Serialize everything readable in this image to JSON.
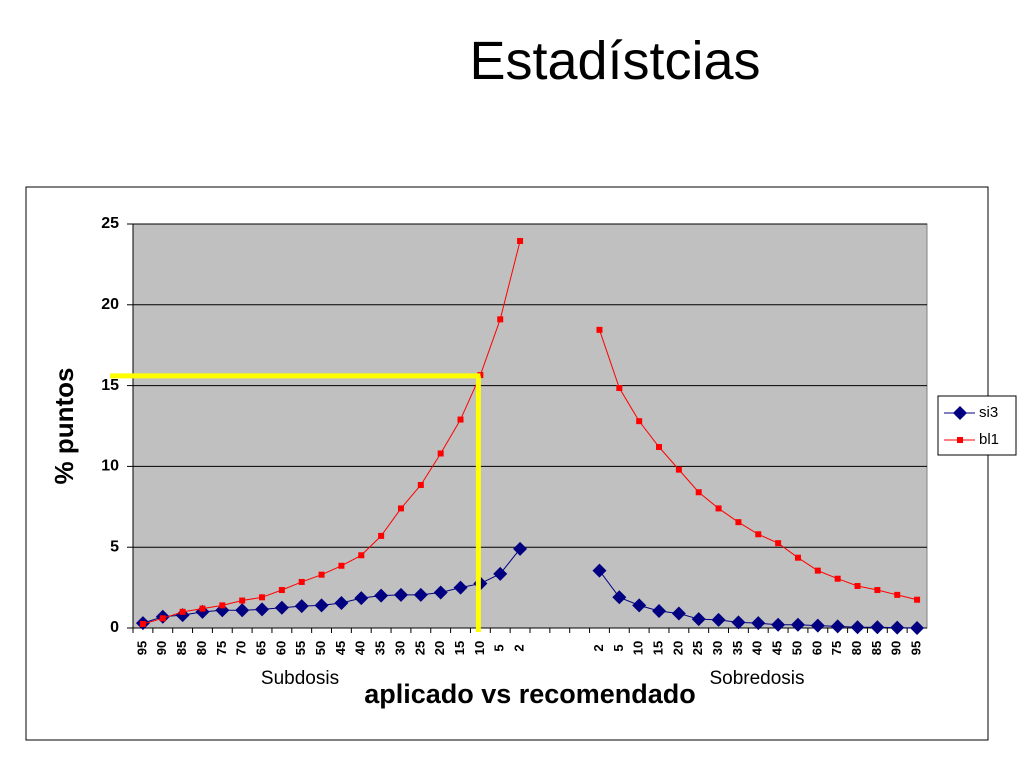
{
  "page_title": "Estadístcias",
  "chart_data": {
    "type": "line",
    "y_label": "% puntos",
    "x_label": "aplicado vs recomendado",
    "annotations": [
      "Subdosis",
      "Sobredosis"
    ],
    "categories": [
      "95",
      "90",
      "85",
      "80",
      "75",
      "70",
      "65",
      "60",
      "55",
      "50",
      "45",
      "40",
      "35",
      "30",
      "25",
      "20",
      "15",
      "10",
      "5",
      "2",
      null,
      null,
      null,
      "2",
      "5",
      "10",
      "15",
      "20",
      "25",
      "30",
      "35",
      "40",
      "45",
      "50",
      "60",
      "75",
      "80",
      "85",
      "90",
      "95"
    ],
    "series": [
      {
        "name": "si3",
        "color": "#000080",
        "marker": "diamond",
        "values": [
          0.3,
          0.7,
          0.8,
          1.0,
          1.1,
          1.1,
          1.15,
          1.25,
          1.35,
          1.4,
          1.55,
          1.85,
          2.0,
          2.05,
          2.05,
          2.2,
          2.5,
          2.75,
          3.35,
          4.9,
          null,
          null,
          null,
          3.55,
          1.9,
          1.4,
          1.05,
          0.9,
          0.55,
          0.5,
          0.35,
          0.3,
          0.2,
          0.2,
          0.15,
          0.1,
          0.05,
          0.05,
          0.02,
          0.0
        ]
      },
      {
        "name": "bl1",
        "color": "#ff0000",
        "marker": "square",
        "values": [
          0.25,
          0.6,
          1.0,
          1.2,
          1.4,
          1.7,
          1.9,
          2.35,
          2.85,
          3.3,
          3.85,
          4.5,
          5.7,
          7.4,
          8.85,
          10.8,
          12.9,
          15.65,
          19.1,
          23.95,
          null,
          null,
          null,
          18.45,
          14.85,
          12.8,
          11.2,
          9.8,
          8.4,
          7.4,
          6.55,
          5.8,
          5.25,
          4.35,
          3.55,
          3.05,
          2.6,
          2.35,
          2.05,
          1.75
        ]
      }
    ],
    "ylim": [
      0,
      25
    ],
    "yticks": [
      0,
      5,
      10,
      15,
      20,
      25
    ],
    "grid": true,
    "highlight": {
      "y": 15.6,
      "x_index": 17,
      "color": "#ffff00"
    },
    "legend": "right"
  }
}
